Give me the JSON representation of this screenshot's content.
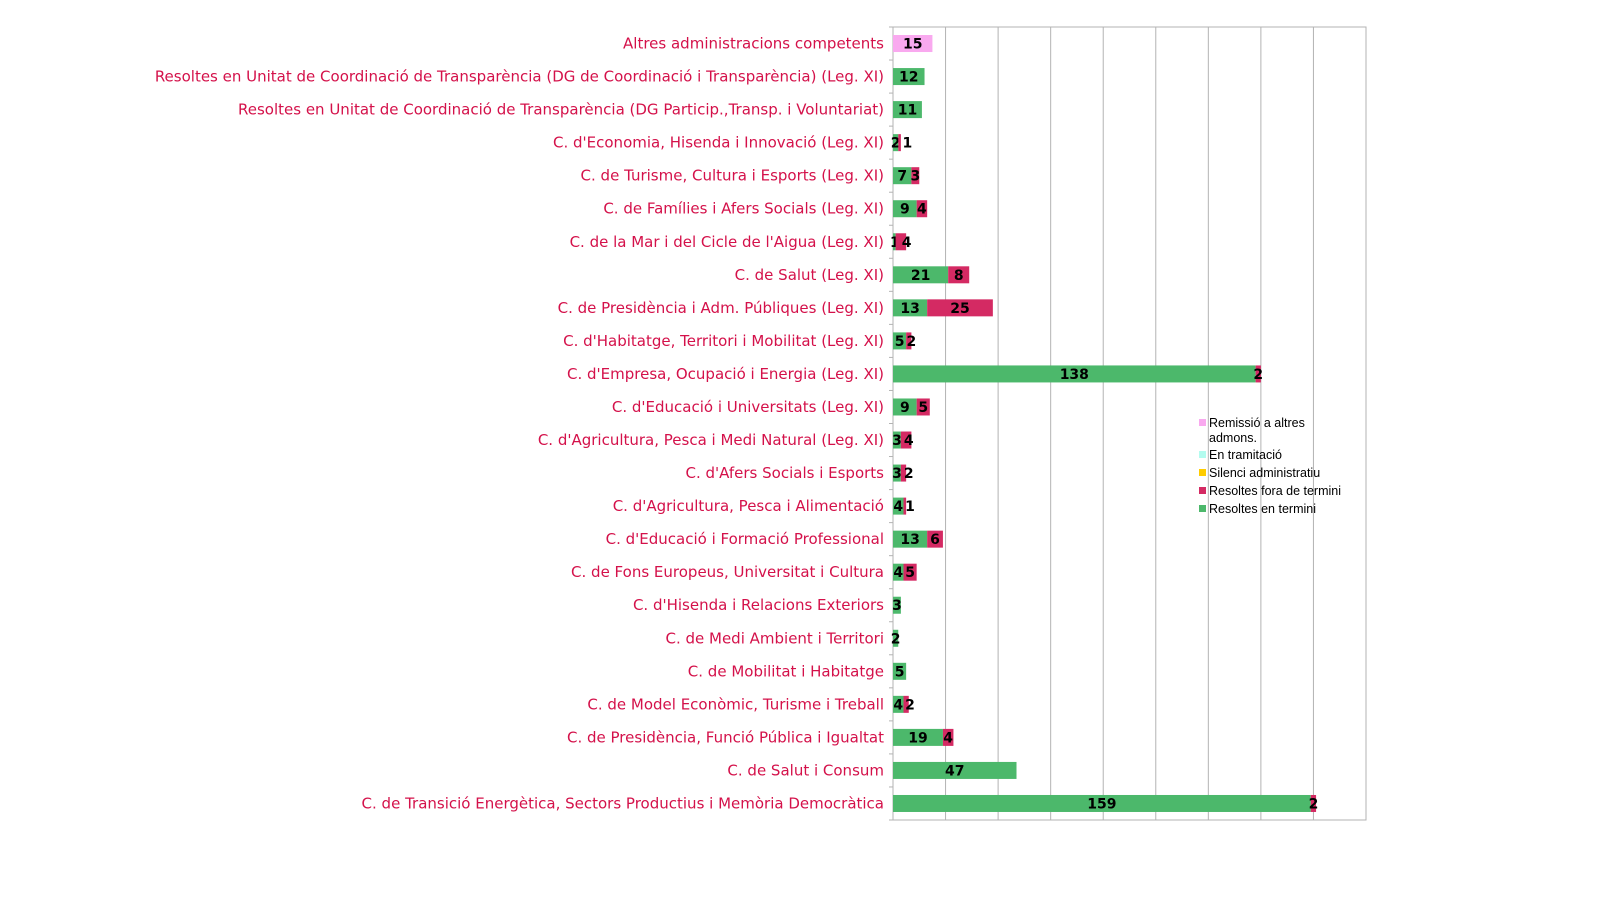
{
  "chart_data": {
    "type": "bar",
    "orientation": "horizontal",
    "stacked": true,
    "title": "",
    "xlabel": "",
    "ylabel": "",
    "xlim": [
      0,
      180
    ],
    "grid_step": 20,
    "grid": true,
    "legend_position": "right",
    "categories": [
      "Altres  administracions competents",
      "Resoltes en Unitat de Coordinació de Transparència (DG de Coordinació i Transparència) (Leg. XI)",
      "Resoltes en Unitat de Coordinació de Transparència (DG Particip.,Transp. i Voluntariat)",
      "C. d'Economia, Hisenda i Innovació (Leg. XI)",
      "C. de Turisme, Cultura i Esports (Leg. XI)",
      "C. de Famílies i Afers Socials (Leg. XI)",
      "C. de la Mar i del Cicle de l'Aigua (Leg. XI)",
      "C. de Salut (Leg. XI)",
      "C. de Presidència i Adm. Públiques (Leg. XI)",
      "C. d'Habitatge, Territori i Mobilitat (Leg. XI)",
      "C. d'Empresa, Ocupació i Energia (Leg. XI)",
      "C. d'Educació i Universitats (Leg. XI)",
      "C. d'Agricultura, Pesca i Medi Natural (Leg. XI)",
      "C.  d'Afers Socials i Esports",
      "C.  d'Agricultura, Pesca i Alimentació",
      "C.  d'Educació i Formació Professional",
      "C. de Fons Europeus, Universitat i Cultura",
      "C.  d'Hisenda i Relacions Exteriors",
      "C. de Medi Ambient i Territori",
      "C.  de Mobilitat i Habitatge",
      "C.  de Model Econòmic, Turisme i Treball",
      "C. de Presidència, Funció Pública i Igualtat",
      "C.  de Salut i Consum",
      "C. de Transició Energètica, Sectors Productius i Memòria Democràtica"
    ],
    "series": [
      {
        "name": "Resoltes en termini",
        "color": "#4cb86b",
        "values": [
          0,
          12,
          11,
          2,
          7,
          9,
          1,
          21,
          13,
          5,
          138,
          9,
          3,
          3,
          4,
          13,
          4,
          3,
          2,
          5,
          4,
          19,
          47,
          159
        ]
      },
      {
        "name": "Resoltes fora de termini",
        "color": "#d42a63",
        "values": [
          0,
          0,
          0,
          1,
          3,
          4,
          4,
          8,
          25,
          2,
          2,
          5,
          4,
          2,
          1,
          6,
          5,
          0,
          0,
          0,
          2,
          4,
          0,
          2
        ]
      },
      {
        "name": "Silenci administratiu",
        "color": "#ffcc00",
        "values": [
          0,
          0,
          0,
          0,
          0,
          0,
          0,
          0,
          0,
          0,
          0,
          0,
          0,
          0,
          0,
          0,
          0,
          0,
          0,
          0,
          0,
          0,
          0,
          0
        ]
      },
      {
        "name": "En tramitació",
        "color": "#b3fcef",
        "values": [
          0,
          0,
          0,
          0,
          0,
          0,
          0,
          0,
          0,
          0,
          0,
          0,
          0,
          0,
          0,
          0,
          0,
          0,
          0,
          0,
          0,
          0,
          0,
          0
        ]
      },
      {
        "name": "Remissió a altres admons.",
        "color": "#f9a9ef",
        "values": [
          15,
          0,
          0,
          0,
          0,
          0,
          0,
          0,
          0,
          0,
          0,
          0,
          0,
          0,
          0,
          0,
          0,
          0,
          0,
          0,
          0,
          0,
          0,
          0
        ]
      }
    ],
    "legend_order": [
      "Remissió a altres admons.",
      "En tramitació",
      "Silenci administratiu",
      "Resoltes fora de termini",
      "Resoltes en termini"
    ]
  }
}
